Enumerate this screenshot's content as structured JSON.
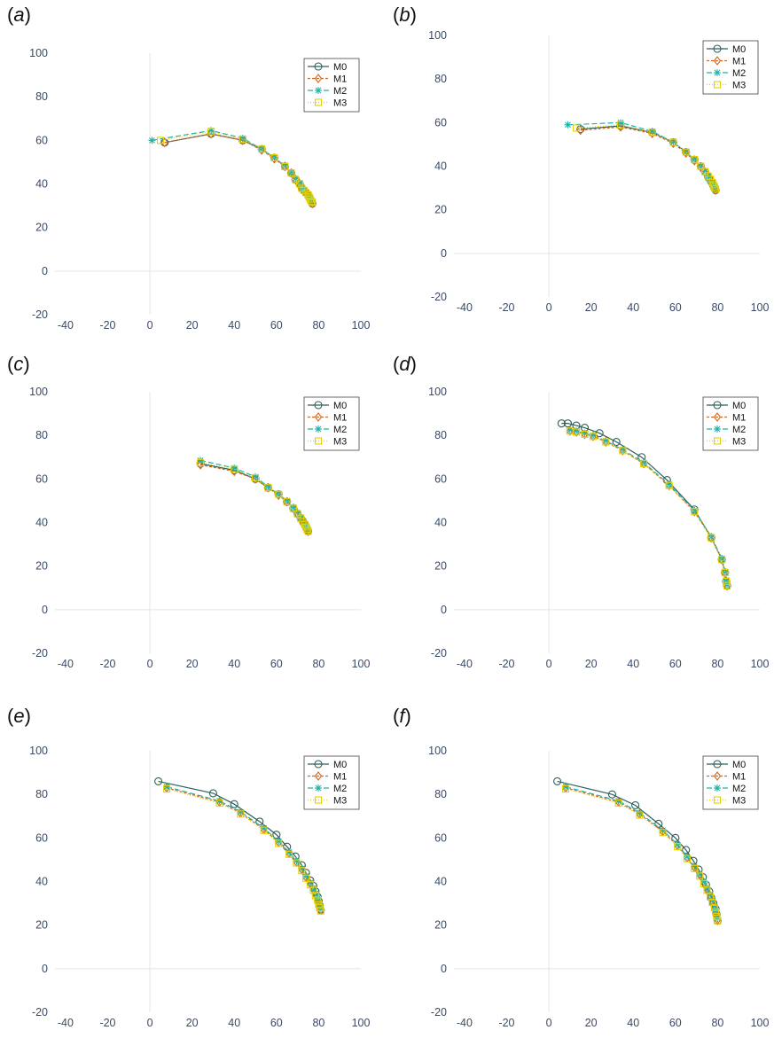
{
  "series_styles": {
    "M0": {
      "color": "#2f5f5a",
      "marker": "circle",
      "dash": ""
    },
    "M1": {
      "color": "#d2691e",
      "marker": "diamond",
      "dash": "3,2"
    },
    "M2": {
      "color": "#20b2aa",
      "marker": "asterisk",
      "dash": "6,3"
    },
    "M3": {
      "color": "#e8d000",
      "marker": "square",
      "dash": "1,2"
    }
  },
  "chart_data": [
    {
      "type": "line",
      "panel_label": "a",
      "xlim": [
        -45,
        100
      ],
      "ylim": [
        -20,
        100
      ],
      "xticks": [
        -40,
        -20,
        0,
        20,
        40,
        60,
        80,
        100
      ],
      "yticks": [
        -20,
        0,
        20,
        40,
        60,
        80,
        100
      ],
      "legend": "top-right",
      "series": [
        {
          "name": "M0",
          "x": [
            7,
            29,
            44,
            53,
            59,
            64,
            67,
            69,
            71,
            72,
            73,
            74,
            75,
            75.5,
            76,
            76.5,
            77
          ],
          "y": [
            59,
            63,
            60,
            56,
            52,
            48,
            45,
            42,
            40,
            38,
            37,
            36,
            35,
            34,
            33,
            32,
            31
          ]
        },
        {
          "name": "M1",
          "x": [
            7,
            29,
            44,
            53,
            59,
            64,
            67,
            69,
            71,
            72,
            73,
            74,
            75,
            75.5,
            76,
            76.5,
            77
          ],
          "y": [
            59,
            63,
            60,
            55.5,
            51.5,
            48,
            45,
            42,
            40,
            38,
            37,
            36,
            35,
            34,
            33,
            32,
            31
          ]
        },
        {
          "name": "M2",
          "x": [
            1,
            29,
            44,
            53,
            59,
            64,
            67,
            69,
            71,
            72,
            73,
            74,
            75,
            75.5,
            76,
            76.5,
            77
          ],
          "y": [
            60,
            64.5,
            61,
            56,
            52,
            48.5,
            45,
            42.5,
            40.5,
            38.5,
            37,
            36,
            35,
            34,
            33,
            32.5,
            32
          ]
        },
        {
          "name": "M3",
          "x": [
            5,
            29,
            44,
            53,
            59,
            64,
            67,
            69,
            71,
            72,
            73,
            74,
            75,
            75.5,
            76,
            76.5,
            77
          ],
          "y": [
            60,
            64,
            60.5,
            56,
            52,
            48,
            45,
            42,
            40,
            38,
            37,
            36,
            35,
            34,
            33,
            32,
            31.5
          ]
        }
      ]
    },
    {
      "type": "line",
      "panel_label": "b",
      "xlim": [
        -45,
        100
      ],
      "ylim": [
        -20,
        100
      ],
      "xticks": [
        -40,
        -20,
        0,
        20,
        40,
        60,
        80,
        100
      ],
      "yticks": [
        -20,
        0,
        20,
        40,
        60,
        80,
        100
      ],
      "legend": "top-right",
      "series": [
        {
          "name": "M0",
          "x": [
            15,
            34,
            49,
            59,
            65,
            69,
            72,
            74,
            75.5,
            76.5,
            77.5,
            78,
            78.5,
            79
          ],
          "y": [
            57,
            58.5,
            55.5,
            51,
            46.5,
            43,
            40,
            37.5,
            35,
            33.5,
            32,
            31,
            30,
            29
          ]
        },
        {
          "name": "M1",
          "x": [
            15,
            34,
            49,
            59,
            65,
            69,
            72,
            74,
            75.5,
            76.5,
            77.5,
            78,
            78.5,
            79
          ],
          "y": [
            56.5,
            58,
            55,
            50.5,
            46,
            42.5,
            39.5,
            37,
            35,
            33.5,
            32,
            31,
            30,
            29
          ]
        },
        {
          "name": "M2",
          "x": [
            9,
            34,
            49,
            59,
            65,
            69,
            72,
            74,
            75.5,
            76.5,
            77.5,
            78,
            78.5,
            79
          ],
          "y": [
            59,
            60,
            56,
            51,
            46.5,
            43,
            40,
            37.5,
            35.5,
            34,
            32.5,
            31.5,
            30.5,
            29.5
          ]
        },
        {
          "name": "M3",
          "x": [
            13,
            34,
            49,
            59,
            65,
            69,
            72,
            74,
            75.5,
            76.5,
            77.5,
            78,
            78.5,
            79
          ],
          "y": [
            57.5,
            59,
            55.5,
            51,
            46.5,
            43,
            40,
            37.5,
            35.5,
            34,
            32.5,
            31.5,
            30.5,
            29.5
          ]
        }
      ]
    },
    {
      "type": "line",
      "panel_label": "c",
      "xlim": [
        -45,
        100
      ],
      "ylim": [
        -20,
        100
      ],
      "xticks": [
        -40,
        -20,
        0,
        20,
        40,
        60,
        80,
        100
      ],
      "yticks": [
        -20,
        0,
        20,
        40,
        60,
        80,
        100
      ],
      "legend": "top-right",
      "series": [
        {
          "name": "M0",
          "x": [
            24,
            40,
            50,
            56,
            61,
            65,
            68,
            70,
            71.5,
            72.5,
            73.5,
            74,
            74.5,
            75
          ],
          "y": [
            67,
            64,
            60,
            56,
            53,
            49.5,
            46.5,
            44,
            42,
            40.5,
            39,
            38,
            37,
            36
          ]
        },
        {
          "name": "M1",
          "x": [
            24,
            40,
            50,
            56,
            61,
            65,
            68,
            70,
            71.5,
            72.5,
            73.5,
            74,
            74.5,
            75
          ],
          "y": [
            66.5,
            63.5,
            60,
            56,
            52.5,
            49.5,
            46.5,
            44,
            42,
            40.5,
            39,
            38,
            37,
            36
          ]
        },
        {
          "name": "M2",
          "x": [
            24,
            40,
            50,
            56,
            61,
            65,
            68,
            70,
            71.5,
            72.5,
            73.5,
            74,
            74.5,
            75
          ],
          "y": [
            68.5,
            65,
            61,
            56.5,
            53,
            50,
            47,
            44.5,
            42.5,
            41,
            39.5,
            38.5,
            37.5,
            36.5
          ]
        },
        {
          "name": "M3",
          "x": [
            24,
            40,
            50,
            56,
            61,
            65,
            68,
            70,
            71.5,
            72.5,
            73.5,
            74,
            74.5,
            75
          ],
          "y": [
            67.5,
            64.5,
            60.5,
            56,
            53,
            49.5,
            46.5,
            44,
            42,
            40.5,
            39,
            38,
            37,
            36
          ]
        }
      ]
    },
    {
      "type": "line",
      "panel_label": "d",
      "xlim": [
        -45,
        100
      ],
      "ylim": [
        -20,
        100
      ],
      "xticks": [
        -40,
        -20,
        0,
        20,
        40,
        60,
        80,
        100
      ],
      "yticks": [
        -20,
        0,
        20,
        40,
        60,
        80,
        100
      ],
      "legend": "top-right",
      "series": [
        {
          "name": "M0",
          "x": [
            6,
            9,
            13,
            17,
            24,
            32,
            44,
            56,
            69,
            77,
            82,
            83.5,
            84,
            84.5
          ],
          "y": [
            85.5,
            85.5,
            84.5,
            83.5,
            81,
            77,
            70,
            59.5,
            46,
            33,
            23,
            17,
            13,
            11
          ]
        },
        {
          "name": "M1",
          "x": [
            10,
            13,
            17,
            21,
            27,
            35,
            45,
            57,
            69,
            77,
            82,
            83.5,
            84,
            84.5
          ],
          "y": [
            82,
            81.5,
            80.5,
            79.5,
            77,
            73,
            67,
            57,
            45,
            33,
            23,
            17,
            13,
            11
          ]
        },
        {
          "name": "M2",
          "x": [
            10,
            13,
            17,
            21,
            27,
            35,
            45,
            57,
            69,
            77,
            82,
            83.5,
            84,
            84.5
          ],
          "y": [
            82.5,
            82,
            81,
            80,
            77.5,
            73.5,
            67.5,
            57.5,
            45.5,
            33.5,
            23.5,
            17.5,
            13.5,
            11.5
          ]
        },
        {
          "name": "M3",
          "x": [
            10,
            13,
            17,
            21,
            27,
            35,
            45,
            57,
            69,
            77,
            82,
            83.5,
            84,
            84.5
          ],
          "y": [
            82,
            81.5,
            80.5,
            79.5,
            77,
            73,
            67,
            57,
            45,
            33,
            23,
            17,
            13,
            11
          ]
        }
      ]
    },
    {
      "type": "line",
      "panel_label": "e",
      "xlim": [
        -45,
        100
      ],
      "ylim": [
        -20,
        100
      ],
      "xticks": [
        -40,
        -20,
        0,
        20,
        40,
        60,
        80,
        100
      ],
      "yticks": [
        -20,
        0,
        20,
        40,
        60,
        80,
        100
      ],
      "legend": "top-right",
      "series": [
        {
          "name": "M0",
          "x": [
            4,
            30,
            40,
            52,
            60,
            65,
            69,
            72,
            74,
            76,
            77.5,
            78.5,
            79.5,
            80,
            80.5,
            81
          ],
          "y": [
            86,
            80.5,
            75.5,
            67.5,
            61.5,
            56,
            51.5,
            47.5,
            44,
            40.5,
            38,
            35.5,
            33,
            31,
            29,
            27
          ]
        },
        {
          "name": "M1",
          "x": [
            8,
            33,
            43,
            54,
            61,
            66,
            69.5,
            72,
            74,
            76,
            77.5,
            78.5,
            79.5,
            80,
            80.5,
            81
          ],
          "y": [
            83,
            76.5,
            71.5,
            64,
            58,
            53,
            49,
            45.5,
            42,
            39,
            36.5,
            34,
            32,
            30,
            28.5,
            27
          ]
        },
        {
          "name": "M2",
          "x": [
            8,
            33,
            43,
            54,
            61,
            66,
            69.5,
            72,
            74,
            76,
            77.5,
            78.5,
            79.5,
            80,
            80.5,
            81
          ],
          "y": [
            83.5,
            77,
            72,
            64.5,
            58.5,
            53.5,
            49.5,
            46,
            42.5,
            39.5,
            37,
            34.5,
            32.5,
            30.5,
            29,
            27.5
          ]
        },
        {
          "name": "M3",
          "x": [
            8,
            33,
            43,
            54,
            61,
            66,
            69.5,
            72,
            74,
            76,
            77.5,
            78.5,
            79.5,
            80,
            80.5,
            81
          ],
          "y": [
            82.5,
            76,
            71,
            63.5,
            57.5,
            52.5,
            48.5,
            45,
            41.5,
            38.5,
            36,
            33.5,
            31.5,
            29.5,
            28,
            26.5
          ]
        }
      ]
    },
    {
      "type": "line",
      "panel_label": "f",
      "xlim": [
        -45,
        100
      ],
      "ylim": [
        -20,
        100
      ],
      "xticks": [
        -40,
        -20,
        0,
        20,
        40,
        60,
        80,
        100
      ],
      "yticks": [
        -20,
        0,
        20,
        40,
        60,
        80,
        100
      ],
      "legend": "top-right",
      "series": [
        {
          "name": "M0",
          "x": [
            4,
            30,
            41,
            52,
            60,
            65,
            68.5,
            71,
            73,
            74.5,
            76,
            77,
            78,
            79,
            79.5,
            80
          ],
          "y": [
            86,
            80,
            75,
            66.5,
            60,
            54.5,
            49.5,
            45.5,
            42,
            38.5,
            35.5,
            32.5,
            30,
            27.5,
            25,
            22
          ]
        },
        {
          "name": "M1",
          "x": [
            8,
            33,
            43,
            54,
            61,
            65.5,
            69,
            71.5,
            73.5,
            75,
            76.5,
            77.5,
            78.5,
            79,
            79.5,
            80
          ],
          "y": [
            83,
            76.5,
            71,
            63,
            56.5,
            51,
            46.5,
            43,
            39.5,
            36.5,
            33.5,
            31,
            28.5,
            26.5,
            24.5,
            22.5
          ]
        },
        {
          "name": "M2",
          "x": [
            8,
            33,
            43,
            54,
            61,
            65.5,
            69,
            71.5,
            73.5,
            75,
            76.5,
            77.5,
            78.5,
            79,
            79.5,
            80
          ],
          "y": [
            83.5,
            77,
            71.5,
            63.5,
            57,
            51.5,
            47,
            43.5,
            40,
            37,
            34,
            31.5,
            29,
            27,
            25,
            23
          ]
        },
        {
          "name": "M3",
          "x": [
            8,
            33,
            43,
            54,
            61,
            65.5,
            69,
            71.5,
            73.5,
            75,
            76.5,
            77.5,
            78.5,
            79,
            79.5,
            80
          ],
          "y": [
            82.5,
            76,
            70.5,
            62.5,
            56,
            50.5,
            46,
            42.5,
            39,
            36,
            33,
            30.5,
            28,
            26,
            24,
            22
          ]
        }
      ]
    }
  ]
}
